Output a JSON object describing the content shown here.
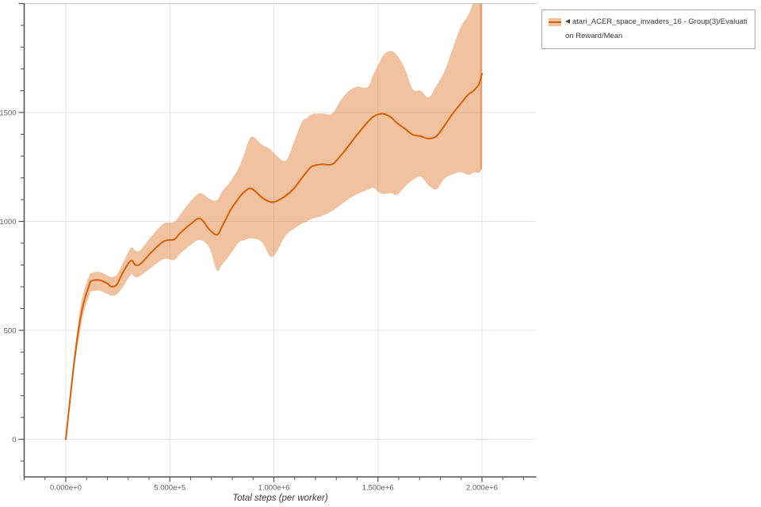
{
  "colors": {
    "line": "#d95f02",
    "band": "rgba(217,95,2,0.38)",
    "band_edge": "rgba(217,95,2,0.30)",
    "grid": "#e6e6e6",
    "plot_top_border": "#c9c9c9",
    "axis": "#545454",
    "tick_label": "#5d5d5d",
    "axis_title": "#3a3a3a",
    "legend_border": "#ababab",
    "legend_text": "#3c3c3c",
    "background": "#ffffff"
  },
  "legend": {
    "label_lines": [
      "atari_ACER_space_invaders_16 - Group(3)/Evaluati",
      "on Reward/Mean"
    ],
    "triangle_icon": "left-pointing-triangle"
  },
  "chart_data": {
    "type": "line",
    "title": "",
    "xlabel": "Total steps (per worker)",
    "ylabel": "",
    "grid": true,
    "legend_position": "top-right-outside",
    "xlim": [
      -200000,
      2260000
    ],
    "ylim": [
      -170,
      2000
    ],
    "x_ticks": [
      {
        "value": 0,
        "label": "0.000e+0"
      },
      {
        "value": 500000,
        "label": "5.000e+5"
      },
      {
        "value": 1000000,
        "label": "1.000e+6"
      },
      {
        "value": 1500000,
        "label": "1.500e+6"
      },
      {
        "value": 2000000,
        "label": "2.000e+6"
      }
    ],
    "y_ticks": [
      {
        "value": 0,
        "label": "0"
      },
      {
        "value": 500,
        "label": "500"
      },
      {
        "value": 1000,
        "label": "1000"
      },
      {
        "value": 1500,
        "label": "1500"
      },
      {
        "value": 2000,
        "label": ""
      }
    ],
    "x_minor_step": 100000,
    "y_minor_step": 100,
    "series": [
      {
        "name": "atari_ACER_space_invaders_16 - Group(3)/Evaluation Reward/Mean",
        "color": "#d95f02",
        "band_color": "rgba(217,95,2,0.38)",
        "steps": [
          0,
          20000,
          45000,
          70000,
          90000,
          110000,
          122000,
          160000,
          200000,
          218000,
          245000,
          275000,
          313000,
          335000,
          360000,
          410000,
          470000,
          520000,
          550000,
          600000,
          645000,
          690000,
          726000,
          750000,
          790000,
          830000,
          855000,
          892000,
          943000,
          981000,
          1010000,
          1057000,
          1095000,
          1134000,
          1160000,
          1184000,
          1230000,
          1280000,
          1324000,
          1363000,
          1400000,
          1450000,
          1477000,
          1503000,
          1527000,
          1560000,
          1592000,
          1630000,
          1668000,
          1706000,
          1744000,
          1782000,
          1820000,
          1858000,
          1897000,
          1935000,
          1961000,
          1986000,
          2000000
        ],
        "mean": [
          0,
          180,
          390,
          555,
          640,
          700,
          726,
          731,
          715,
          701,
          710,
          767,
          820,
          800,
          806,
          857,
          908,
          917,
          947,
          988,
          1013,
          963,
          938,
          975,
          1049,
          1105,
          1133,
          1151,
          1110,
          1090,
          1092,
          1118,
          1150,
          1199,
          1230,
          1253,
          1262,
          1262,
          1305,
          1352,
          1398,
          1455,
          1480,
          1492,
          1494,
          1480,
          1452,
          1425,
          1398,
          1391,
          1380,
          1392,
          1440,
          1493,
          1540,
          1583,
          1601,
          1631,
          1679
        ],
        "lower": [
          0,
          170,
          355,
          505,
          595,
          650,
          678,
          682,
          668,
          660,
          665,
          700,
          755,
          744,
          752,
          787,
          827,
          823,
          852,
          892,
          915,
          878,
          775,
          800,
          848,
          902,
          913,
          922,
          905,
          840,
          855,
          935,
          965,
          989,
          1000,
          1012,
          1025,
          1048,
          1078,
          1105,
          1125,
          1145,
          1155,
          1135,
          1125,
          1130,
          1122,
          1160,
          1190,
          1205,
          1165,
          1148,
          1197,
          1215,
          1226,
          1213,
          1224,
          1223,
          1241
        ],
        "upper": [
          0,
          192,
          425,
          605,
          690,
          745,
          762,
          768,
          752,
          745,
          755,
          810,
          878,
          866,
          870,
          930,
          990,
          997,
          1032,
          1092,
          1130,
          1104,
          1097,
          1135,
          1182,
          1245,
          1302,
          1388,
          1352,
          1333,
          1305,
          1279,
          1360,
          1455,
          1475,
          1493,
          1495,
          1496,
          1560,
          1601,
          1618,
          1616,
          1673,
          1722,
          1764,
          1783,
          1763,
          1700,
          1607,
          1600,
          1570,
          1625,
          1690,
          1790,
          1890,
          1949,
          2010,
          2060,
          2080
        ]
      }
    ]
  }
}
